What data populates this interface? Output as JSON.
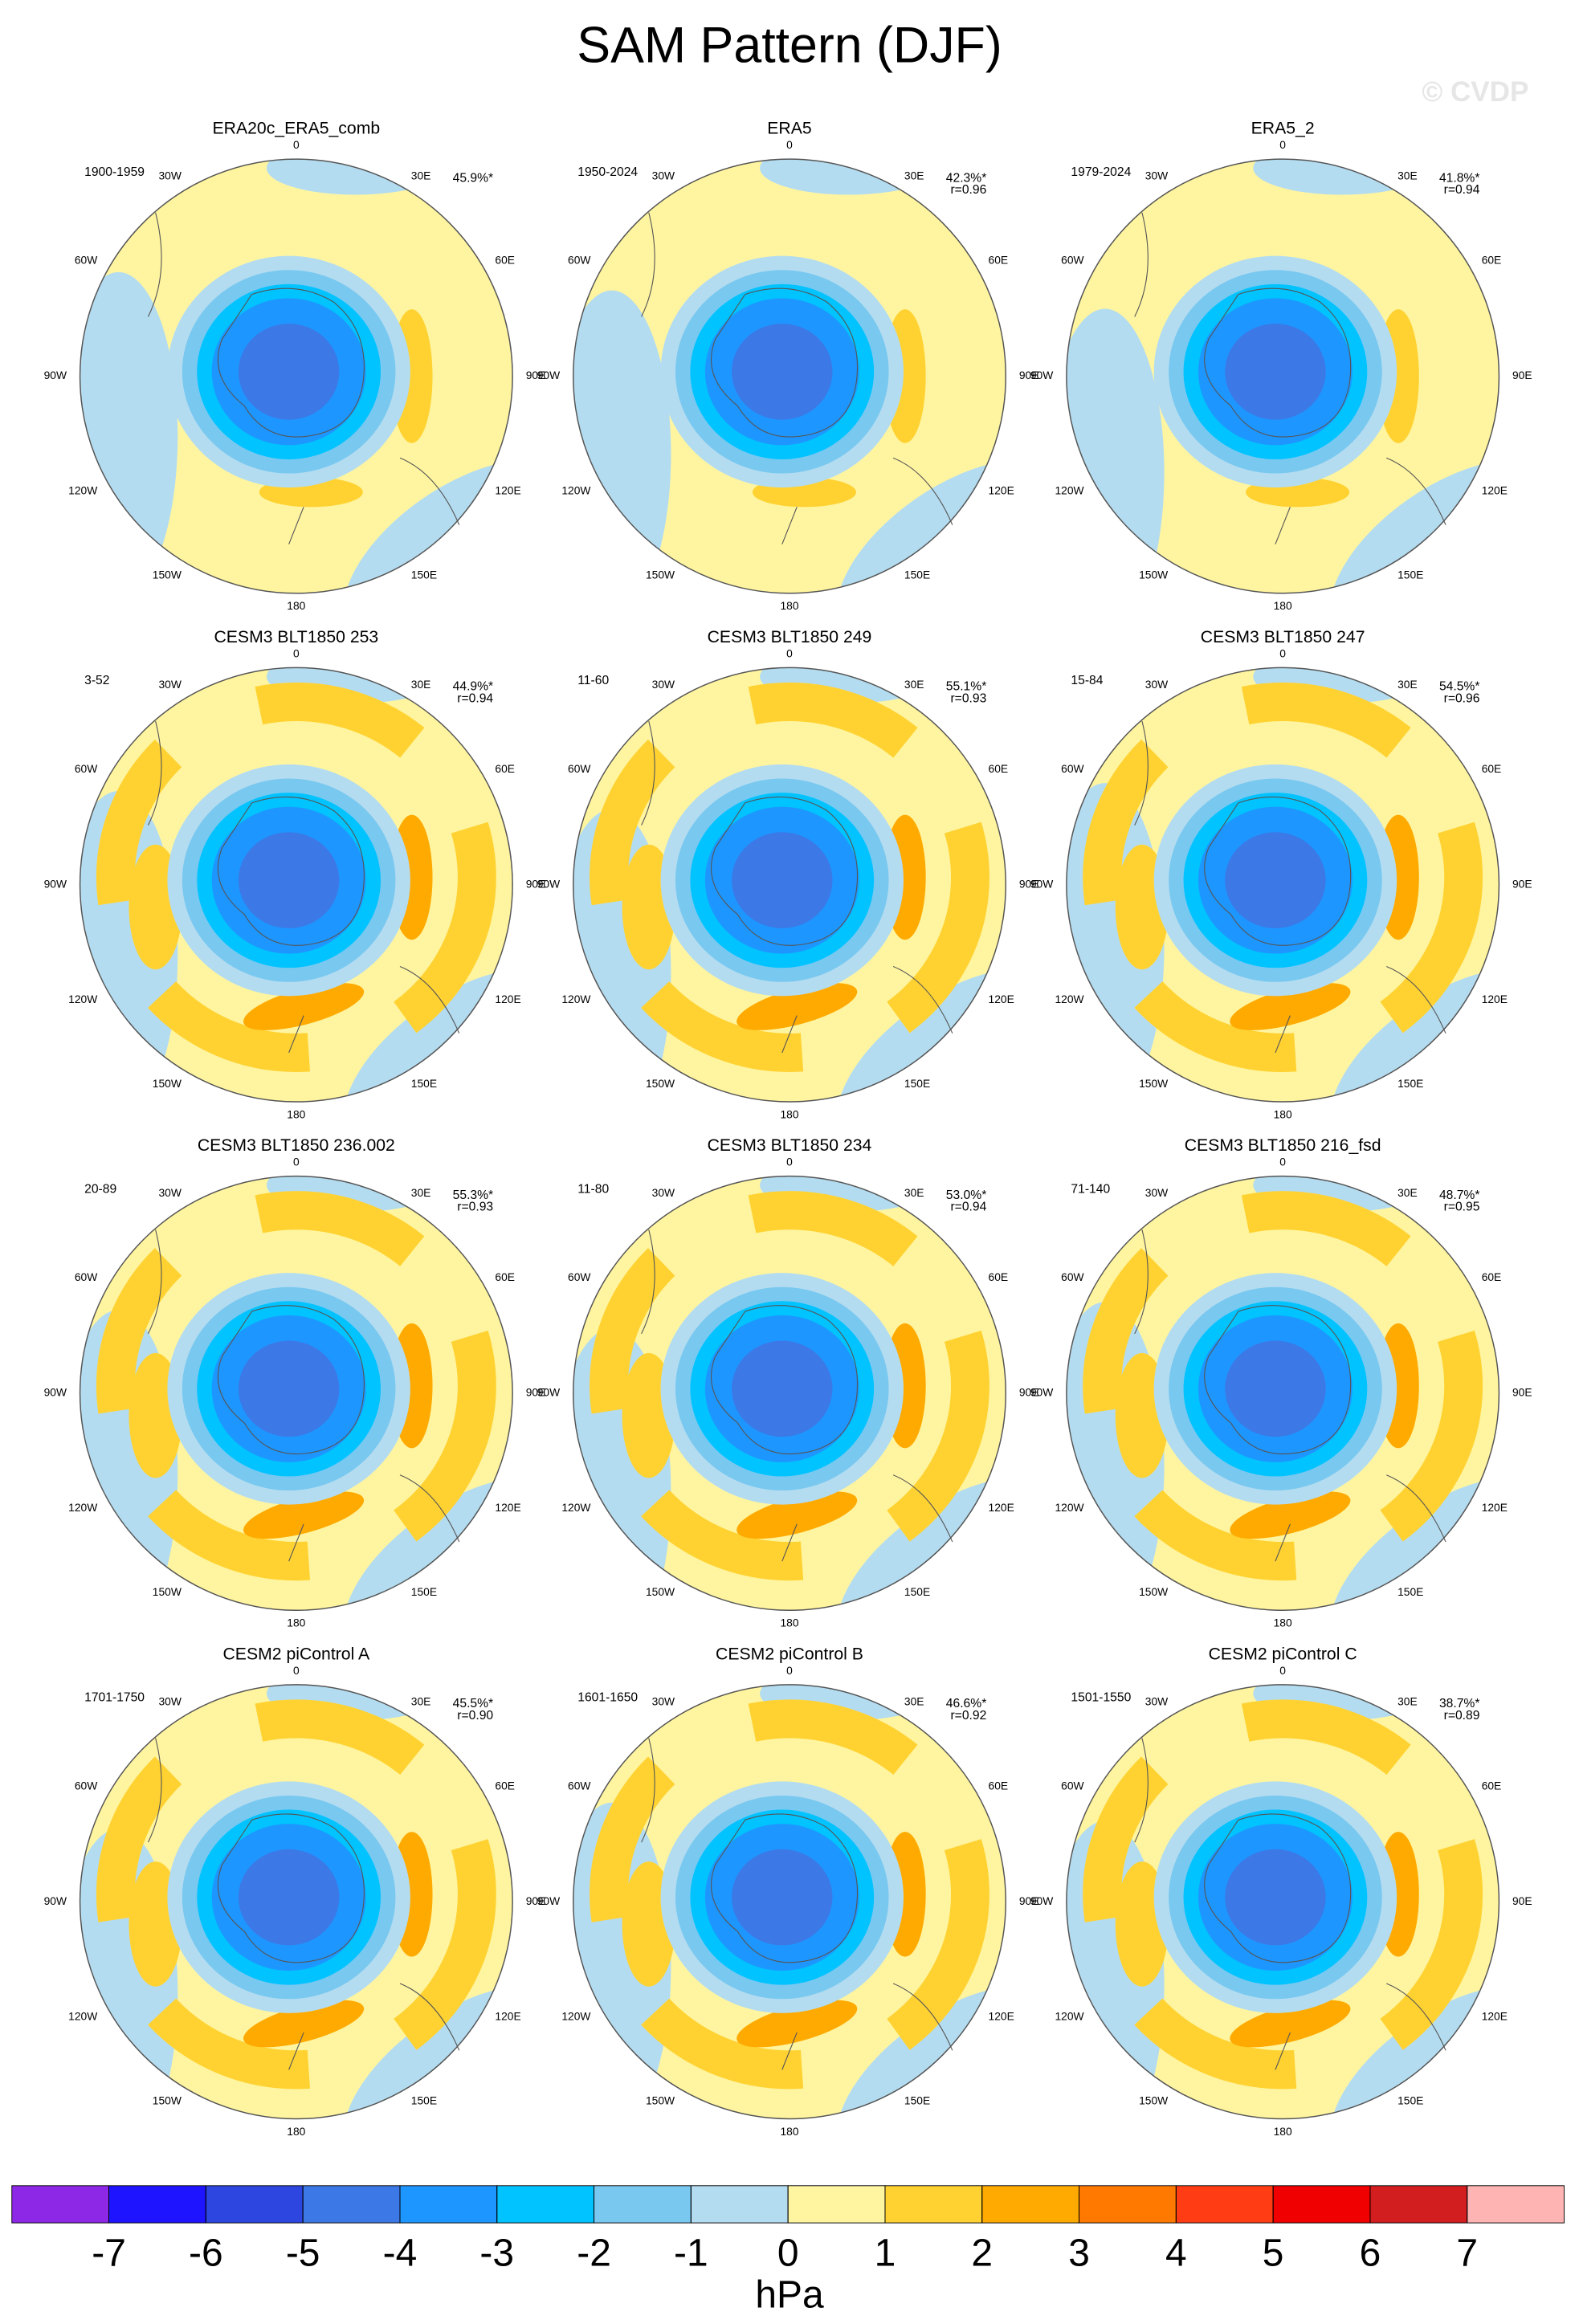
{
  "header": {
    "title": "SAM Pattern (DJF)",
    "watermark": "© CVDP"
  },
  "lon_labels": [
    "0",
    "30E",
    "60E",
    "90E",
    "120E",
    "150E",
    "180",
    "150W",
    "120W",
    "90W",
    "60W",
    "30W"
  ],
  "panels": [
    {
      "title": "ERA20c_ERA5_comb",
      "period": "1900-1959",
      "percent": "45.9%*"
    },
    {
      "title": "ERA5",
      "period": "1950-2024",
      "percent": "42.3%*",
      "r": "r=0.96"
    },
    {
      "title": "ERA5_2",
      "period": "1979-2024",
      "percent": "41.8%*",
      "r": "r=0.94"
    },
    {
      "title": "CESM3 BLT1850 253",
      "period": "3-52",
      "percent": "44.9%*",
      "r": "r=0.94"
    },
    {
      "title": "CESM3 BLT1850 249",
      "period": "11-60",
      "percent": "55.1%*",
      "r": "r=0.93"
    },
    {
      "title": "CESM3 BLT1850 247",
      "period": "15-84",
      "percent": "54.5%*",
      "r": "r=0.96"
    },
    {
      "title": "CESM3 BLT1850 236.002",
      "period": "20-89",
      "percent": "55.3%*",
      "r": "r=0.93"
    },
    {
      "title": "CESM3 BLT1850 234",
      "period": "11-80",
      "percent": "53.0%*",
      "r": "r=0.94"
    },
    {
      "title": "CESM3 BLT1850 216_fsd",
      "period": "71-140",
      "percent": "48.7%*",
      "r": "r=0.95"
    },
    {
      "title": "CESM2 piControl A",
      "period": "1701-1750",
      "percent": "45.5%*",
      "r": "r=0.90"
    },
    {
      "title": "CESM2 piControl B",
      "period": "1601-1650",
      "percent": "46.6%*",
      "r": "r=0.92"
    },
    {
      "title": "CESM2 piControl C",
      "period": "1501-1550",
      "percent": "38.7%*",
      "r": "r=0.89"
    }
  ],
  "colorbar": {
    "label": "hPa",
    "ticks": [
      -7,
      -6,
      -5,
      -4,
      -3,
      -2,
      -1,
      0,
      1,
      2,
      3,
      4,
      5,
      6,
      7
    ],
    "colors": [
      "#8c28e6",
      "#1e14ff",
      "#2d46e0",
      "#3c78e6",
      "#1e96ff",
      "#00c3ff",
      "#78c8f0",
      "#b4dcf0",
      "#fff5a0",
      "#ffd232",
      "#ffaa00",
      "#ff7800",
      "#ff3c14",
      "#f00000",
      "#d21e1e",
      "#ffb4b4"
    ]
  }
}
